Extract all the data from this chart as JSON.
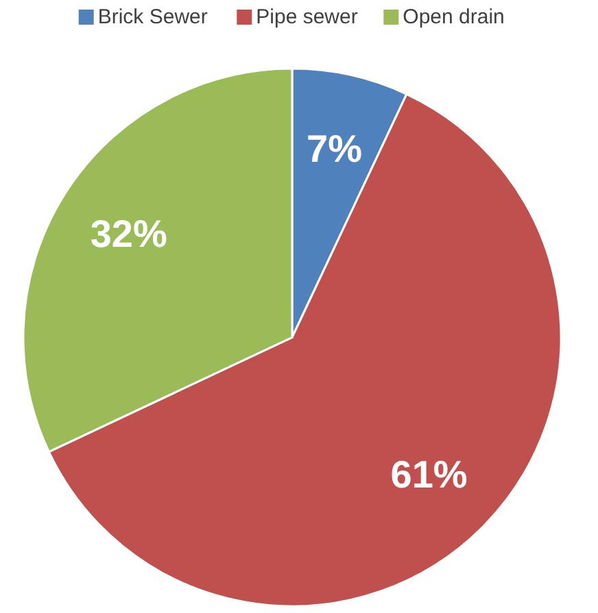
{
  "chart_data": {
    "type": "pie",
    "categories": [
      "Brick Sewer",
      "Pipe sewer",
      "Open drain"
    ],
    "values": [
      7,
      61,
      32
    ],
    "colors": [
      "#4f81bd",
      "#c0504d",
      "#9bbb59"
    ],
    "value_labels": [
      "7%",
      "61%",
      "32%"
    ],
    "legend": "top"
  }
}
